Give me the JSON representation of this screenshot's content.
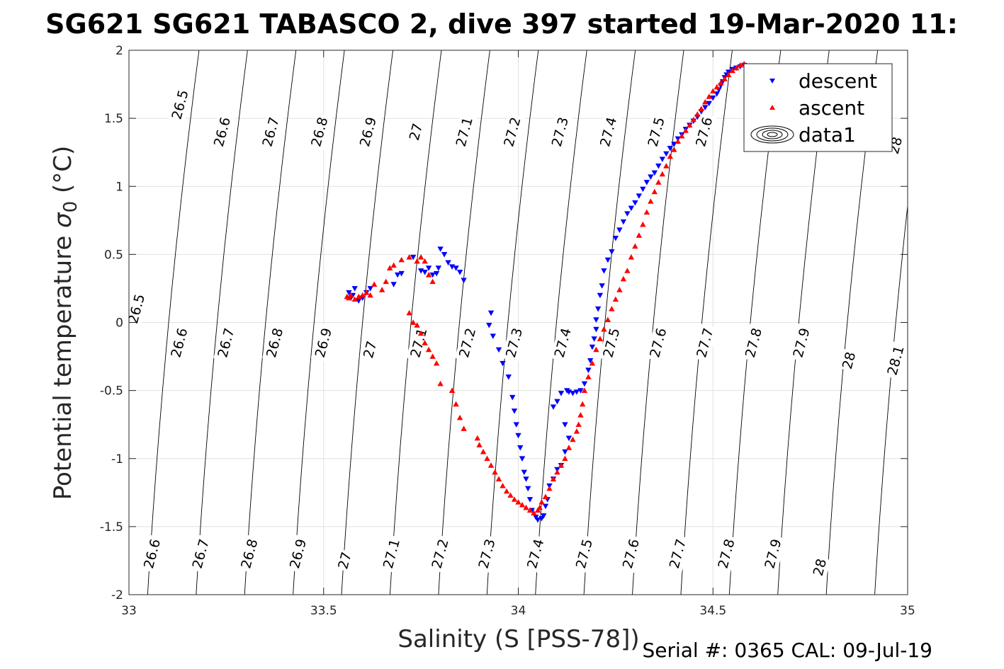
{
  "chart_data": {
    "type": "scatter",
    "title": "SG621 SG621 TABASCO 2, dive 397 started 19-Mar-2020 11:",
    "xlabel": "Salinity (S [PSS-78])",
    "ylabel_main": "Potential temperature ",
    "ylabel_sigma": "σ",
    "ylabel_sub": "0",
    "ylabel_unit": " (°C)",
    "footer": "Serial #: 0365  CAL: 09-Jul-19",
    "xlim": [
      33,
      35
    ],
    "ylim": [
      -2,
      2
    ],
    "xticks": [
      {
        "value": 33,
        "label": "33"
      },
      {
        "value": 33.5,
        "label": "33.5"
      },
      {
        "value": 34,
        "label": "34"
      },
      {
        "value": 34.5,
        "label": "34.5"
      },
      {
        "value": 35,
        "label": "35"
      }
    ],
    "yticks": [
      {
        "value": -2,
        "label": "-2"
      },
      {
        "value": -1.5,
        "label": "-1.5"
      },
      {
        "value": -1,
        "label": "-1"
      },
      {
        "value": -0.5,
        "label": "-0.5"
      },
      {
        "value": 0,
        "label": "0"
      },
      {
        "value": 0.5,
        "label": "0.5"
      },
      {
        "value": 1,
        "label": "1"
      },
      {
        "value": 1.5,
        "label": "1.5"
      },
      {
        "value": 2,
        "label": "2"
      }
    ],
    "grid": true,
    "legend_position": "top-right",
    "legend": [
      {
        "name": "descent",
        "marker": "triangle-down",
        "color": "#0000ff"
      },
      {
        "name": "ascent",
        "marker": "triangle-up",
        "color": "#ff0000"
      },
      {
        "name": "data1",
        "marker": "contour",
        "color": "#000000"
      }
    ],
    "contours": {
      "levels": [
        26.5,
        26.6,
        26.7,
        26.8,
        26.9,
        27,
        27.1,
        27.2,
        27.3,
        27.4,
        27.5,
        27.6,
        27.7,
        27.8,
        27.9,
        28,
        28.1
      ],
      "labels": [
        {
          "text": "26.5",
          "s": 33.132,
          "t": 1.6
        },
        {
          "text": "26.6",
          "s": 33.24,
          "t": 1.4
        },
        {
          "text": "26.7",
          "s": 33.365,
          "t": 1.4
        },
        {
          "text": "26.8",
          "s": 33.49,
          "t": 1.4
        },
        {
          "text": "26.9",
          "s": 33.615,
          "t": 1.4
        },
        {
          "text": "27",
          "s": 33.738,
          "t": 1.4
        },
        {
          "text": "27.1",
          "s": 33.862,
          "t": 1.4
        },
        {
          "text": "27.2",
          "s": 33.985,
          "t": 1.4
        },
        {
          "text": "27.3",
          "s": 34.108,
          "t": 1.4
        },
        {
          "text": "27.4",
          "s": 34.232,
          "t": 1.4
        },
        {
          "text": "27.5",
          "s": 34.355,
          "t": 1.4
        },
        {
          "text": "27.6",
          "s": 34.478,
          "t": 1.4
        },
        {
          "text": "28",
          "s": 34.97,
          "t": 1.3
        },
        {
          "text": "26.5",
          "s": 33.02,
          "t": 0.1
        },
        {
          "text": "26.6",
          "s": 33.13,
          "t": -0.15
        },
        {
          "text": "26.7",
          "s": 33.25,
          "t": -0.15
        },
        {
          "text": "26.8",
          "s": 33.375,
          "t": -0.15
        },
        {
          "text": "26.9",
          "s": 33.5,
          "t": -0.15
        },
        {
          "text": "27",
          "s": 33.62,
          "t": -0.2
        },
        {
          "text": "27.1",
          "s": 33.745,
          "t": -0.15
        },
        {
          "text": "27.2",
          "s": 33.87,
          "t": -0.15
        },
        {
          "text": "27.3",
          "s": 33.99,
          "t": -0.15
        },
        {
          "text": "27.4",
          "s": 34.115,
          "t": -0.15
        },
        {
          "text": "27.5",
          "s": 34.24,
          "t": -0.15
        },
        {
          "text": "27.6",
          "s": 34.36,
          "t": -0.15
        },
        {
          "text": "27.7",
          "s": 34.48,
          "t": -0.15
        },
        {
          "text": "27.8",
          "s": 34.605,
          "t": -0.15
        },
        {
          "text": "27.9",
          "s": 34.728,
          "t": -0.15
        },
        {
          "text": "28",
          "s": 34.85,
          "t": -0.28
        },
        {
          "text": "28.1",
          "s": 34.97,
          "t": -0.28
        },
        {
          "text": "26.6",
          "s": 33.06,
          "t": -1.7
        },
        {
          "text": "26.7",
          "s": 33.185,
          "t": -1.7
        },
        {
          "text": "26.8",
          "s": 33.31,
          "t": -1.7
        },
        {
          "text": "26.9",
          "s": 33.435,
          "t": -1.7
        },
        {
          "text": "27",
          "s": 33.555,
          "t": -1.75
        },
        {
          "text": "27.1",
          "s": 33.675,
          "t": -1.7
        },
        {
          "text": "27.2",
          "s": 33.8,
          "t": -1.7
        },
        {
          "text": "27.3",
          "s": 33.92,
          "t": -1.7
        },
        {
          "text": "27.4",
          "s": 34.045,
          "t": -1.7
        },
        {
          "text": "27.5",
          "s": 34.17,
          "t": -1.7
        },
        {
          "text": "27.6",
          "s": 34.29,
          "t": -1.7
        },
        {
          "text": "27.7",
          "s": 34.41,
          "t": -1.7
        },
        {
          "text": "27.8",
          "s": 34.535,
          "t": -1.7
        },
        {
          "text": "27.9",
          "s": 34.655,
          "t": -1.7
        },
        {
          "text": "28",
          "s": 34.775,
          "t": -1.8
        }
      ]
    },
    "series": [
      {
        "name": "descent",
        "color": "#0000ff",
        "marker": "triangle-down",
        "points": [
          [
            34.58,
            1.89
          ],
          [
            34.57,
            1.88
          ],
          [
            34.56,
            1.87
          ],
          [
            34.55,
            1.86
          ],
          [
            34.54,
            1.84
          ],
          [
            34.535,
            1.82
          ],
          [
            34.53,
            1.8
          ],
          [
            34.525,
            1.77
          ],
          [
            34.52,
            1.74
          ],
          [
            34.515,
            1.71
          ],
          [
            34.51,
            1.68
          ],
          [
            34.5,
            1.65
          ],
          [
            34.49,
            1.61
          ],
          [
            34.48,
            1.58
          ],
          [
            34.47,
            1.55
          ],
          [
            34.46,
            1.51
          ],
          [
            34.45,
            1.48
          ],
          [
            34.44,
            1.45
          ],
          [
            34.43,
            1.42
          ],
          [
            34.42,
            1.38
          ],
          [
            34.41,
            1.35
          ],
          [
            34.4,
            1.31
          ],
          [
            34.39,
            1.28
          ],
          [
            34.38,
            1.24
          ],
          [
            34.37,
            1.2
          ],
          [
            34.36,
            1.15
          ],
          [
            34.35,
            1.1
          ],
          [
            34.34,
            1.07
          ],
          [
            34.33,
            1.03
          ],
          [
            34.32,
            0.98
          ],
          [
            34.31,
            0.93
          ],
          [
            34.3,
            0.88
          ],
          [
            34.29,
            0.84
          ],
          [
            34.28,
            0.8
          ],
          [
            34.27,
            0.74
          ],
          [
            34.26,
            0.68
          ],
          [
            34.25,
            0.62
          ],
          [
            34.24,
            0.52
          ],
          [
            34.23,
            0.46
          ],
          [
            34.22,
            0.38
          ],
          [
            34.215,
            0.27
          ],
          [
            34.21,
            0.2
          ],
          [
            34.205,
            0.1
          ],
          [
            34.2,
            0.02
          ],
          [
            34.2,
            -0.05
          ],
          [
            34.195,
            -0.12
          ],
          [
            34.19,
            -0.18
          ],
          [
            34.185,
            -0.28
          ],
          [
            34.18,
            -0.35
          ],
          [
            34.17,
            -0.45
          ],
          [
            34.16,
            -0.5
          ],
          [
            34.15,
            -0.51
          ],
          [
            34.14,
            -0.52
          ],
          [
            34.13,
            -0.51
          ],
          [
            34.125,
            -0.5
          ],
          [
            34.11,
            -0.52
          ],
          [
            34.1,
            -0.58
          ],
          [
            34.09,
            -0.62
          ],
          [
            34.12,
            -0.75
          ],
          [
            34.13,
            -0.85
          ],
          [
            34.12,
            -0.95
          ],
          [
            34.11,
            -1.05
          ],
          [
            34.1,
            -1.08
          ],
          [
            34.09,
            -1.15
          ],
          [
            34.08,
            -1.2
          ],
          [
            34.075,
            -1.3
          ],
          [
            34.07,
            -1.35
          ],
          [
            34.065,
            -1.42
          ],
          [
            34.06,
            -1.44
          ],
          [
            34.05,
            -1.45
          ],
          [
            34.045,
            -1.43
          ],
          [
            34.035,
            -1.38
          ],
          [
            34.03,
            -1.3
          ],
          [
            34.025,
            -1.22
          ],
          [
            34.02,
            -1.15
          ],
          [
            34.015,
            -1.1
          ],
          [
            34.01,
            -1.0
          ],
          [
            34.005,
            -0.92
          ],
          [
            34.0,
            -0.83
          ],
          [
            33.995,
            -0.75
          ],
          [
            33.99,
            -0.65
          ],
          [
            33.985,
            -0.55
          ],
          [
            33.975,
            -0.4
          ],
          [
            33.96,
            -0.3
          ],
          [
            33.95,
            -0.2
          ],
          [
            33.935,
            -0.1
          ],
          [
            33.925,
            -0.02
          ],
          [
            33.93,
            0.07
          ],
          [
            33.86,
            0.31
          ],
          [
            33.85,
            0.37
          ],
          [
            33.84,
            0.4
          ],
          [
            33.83,
            0.41
          ],
          [
            33.82,
            0.44
          ],
          [
            33.81,
            0.5
          ],
          [
            33.8,
            0.54
          ],
          [
            33.795,
            0.4
          ],
          [
            33.79,
            0.36
          ],
          [
            33.78,
            0.35
          ],
          [
            33.77,
            0.4
          ],
          [
            33.76,
            0.37
          ],
          [
            33.75,
            0.38
          ],
          [
            33.73,
            0.48
          ],
          [
            33.7,
            0.36
          ],
          [
            33.69,
            0.35
          ],
          [
            33.68,
            0.28
          ],
          [
            33.62,
            0.25
          ],
          [
            33.61,
            0.22
          ],
          [
            33.6,
            0.18
          ],
          [
            33.59,
            0.16
          ],
          [
            33.58,
            0.25
          ],
          [
            33.575,
            0.2
          ],
          [
            33.57,
            0.18
          ],
          [
            33.565,
            0.22
          ]
        ]
      },
      {
        "name": "ascent",
        "color": "#ff0000",
        "marker": "triangle-up",
        "points": [
          [
            34.58,
            1.9
          ],
          [
            34.57,
            1.89
          ],
          [
            34.56,
            1.87
          ],
          [
            34.55,
            1.85
          ],
          [
            34.54,
            1.82
          ],
          [
            34.53,
            1.79
          ],
          [
            34.52,
            1.76
          ],
          [
            34.51,
            1.73
          ],
          [
            34.5,
            1.7
          ],
          [
            34.49,
            1.66
          ],
          [
            34.48,
            1.62
          ],
          [
            34.47,
            1.57
          ],
          [
            34.46,
            1.53
          ],
          [
            34.45,
            1.49
          ],
          [
            34.44,
            1.45
          ],
          [
            34.43,
            1.41
          ],
          [
            34.42,
            1.37
          ],
          [
            34.41,
            1.33
          ],
          [
            34.4,
            1.27
          ],
          [
            34.39,
            1.22
          ],
          [
            34.38,
            1.15
          ],
          [
            34.37,
            1.09
          ],
          [
            34.36,
            1.03
          ],
          [
            34.35,
            0.96
          ],
          [
            34.34,
            0.89
          ],
          [
            34.33,
            0.81
          ],
          [
            34.32,
            0.72
          ],
          [
            34.31,
            0.64
          ],
          [
            34.3,
            0.56
          ],
          [
            34.29,
            0.48
          ],
          [
            34.28,
            0.38
          ],
          [
            34.27,
            0.32
          ],
          [
            34.26,
            0.24
          ],
          [
            34.25,
            0.17
          ],
          [
            34.24,
            0.1
          ],
          [
            34.23,
            0.02
          ],
          [
            34.22,
            -0.05
          ],
          [
            34.21,
            -0.12
          ],
          [
            34.2,
            -0.2
          ],
          [
            34.19,
            -0.3
          ],
          [
            34.18,
            -0.4
          ],
          [
            34.17,
            -0.5
          ],
          [
            34.165,
            -0.6
          ],
          [
            34.16,
            -0.68
          ],
          [
            34.155,
            -0.75
          ],
          [
            34.15,
            -0.8
          ],
          [
            34.14,
            -0.86
          ],
          [
            34.13,
            -0.92
          ],
          [
            34.12,
            -1.0
          ],
          [
            34.11,
            -1.05
          ],
          [
            34.1,
            -1.1
          ],
          [
            34.09,
            -1.15
          ],
          [
            34.08,
            -1.22
          ],
          [
            34.07,
            -1.28
          ],
          [
            34.06,
            -1.32
          ],
          [
            34.055,
            -1.36
          ],
          [
            34.05,
            -1.38
          ],
          [
            34.04,
            -1.4
          ],
          [
            34.03,
            -1.38
          ],
          [
            34.02,
            -1.36
          ],
          [
            34.01,
            -1.34
          ],
          [
            34.0,
            -1.32
          ],
          [
            33.99,
            -1.3
          ],
          [
            33.98,
            -1.27
          ],
          [
            33.97,
            -1.24
          ],
          [
            33.96,
            -1.2
          ],
          [
            33.95,
            -1.15
          ],
          [
            33.94,
            -1.1
          ],
          [
            33.93,
            -1.05
          ],
          [
            33.92,
            -1.0
          ],
          [
            33.91,
            -0.95
          ],
          [
            33.9,
            -0.9
          ],
          [
            33.895,
            -0.85
          ],
          [
            33.86,
            -0.78
          ],
          [
            33.85,
            -0.7
          ],
          [
            33.84,
            -0.6
          ],
          [
            33.83,
            -0.5
          ],
          [
            33.8,
            -0.45
          ],
          [
            33.79,
            -0.3
          ],
          [
            33.78,
            -0.25
          ],
          [
            33.77,
            -0.2
          ],
          [
            33.76,
            -0.15
          ],
          [
            33.75,
            -0.08
          ],
          [
            33.74,
            -0.02
          ],
          [
            33.73,
            0.0
          ],
          [
            33.72,
            0.07
          ],
          [
            33.78,
            0.3
          ],
          [
            33.77,
            0.35
          ],
          [
            33.76,
            0.45
          ],
          [
            33.75,
            0.48
          ],
          [
            33.74,
            0.45
          ],
          [
            33.72,
            0.48
          ],
          [
            33.7,
            0.46
          ],
          [
            33.68,
            0.42
          ],
          [
            33.67,
            0.4
          ],
          [
            33.66,
            0.3
          ],
          [
            33.65,
            0.24
          ],
          [
            33.63,
            0.28
          ],
          [
            33.62,
            0.2
          ],
          [
            33.61,
            0.22
          ],
          [
            33.6,
            0.2
          ],
          [
            33.59,
            0.19
          ],
          [
            33.58,
            0.17
          ],
          [
            33.57,
            0.2
          ],
          [
            33.565,
            0.18
          ],
          [
            33.56,
            0.19
          ]
        ]
      }
    ]
  }
}
